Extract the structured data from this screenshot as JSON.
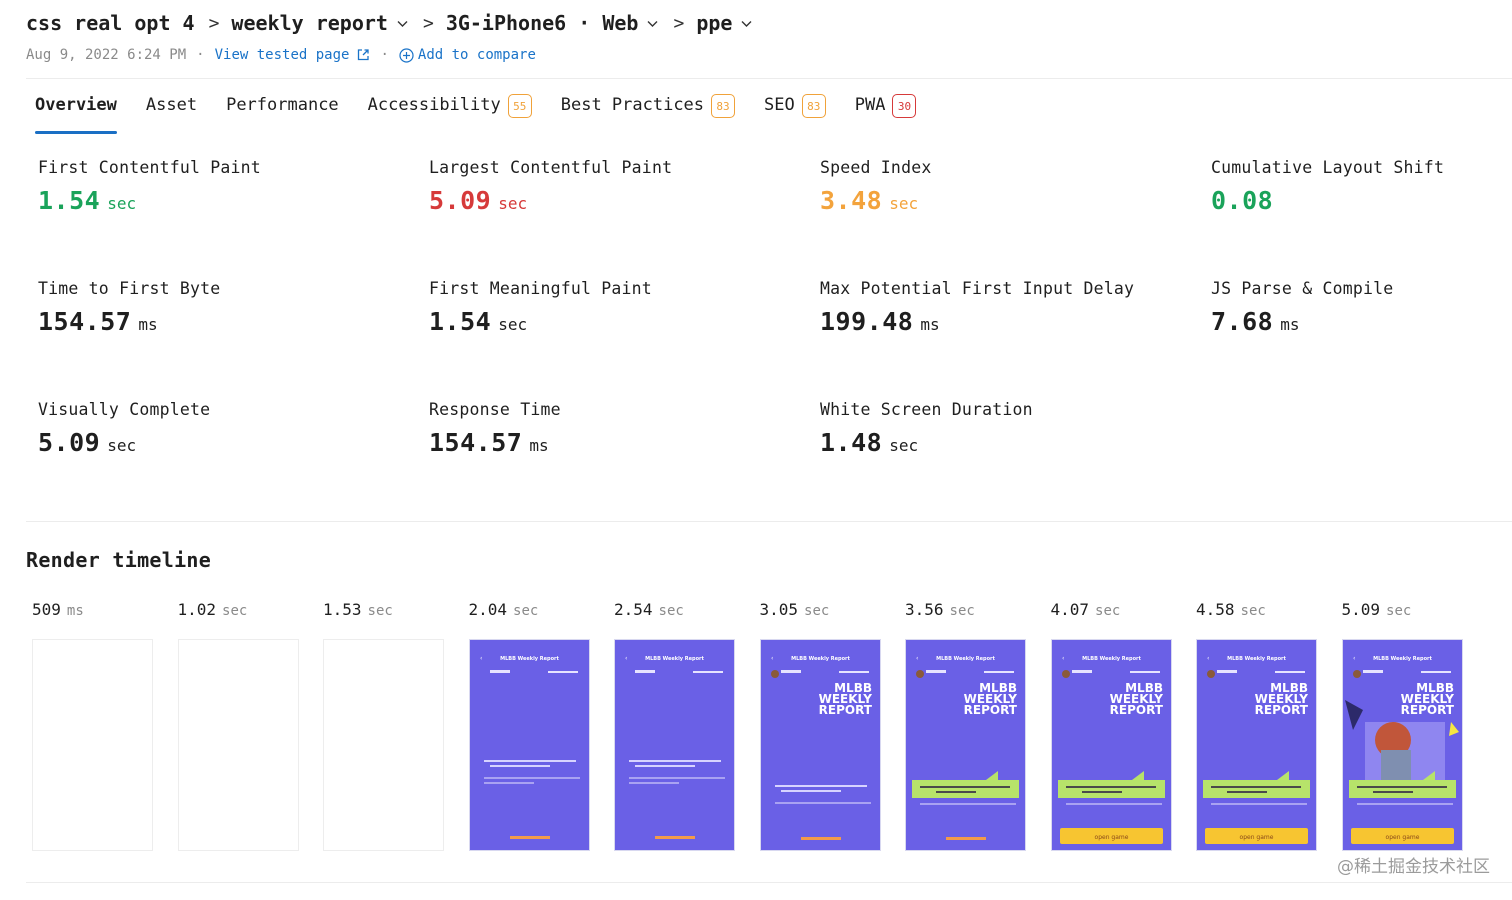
{
  "header": {
    "breadcrumb": [
      {
        "label": "css real opt 4",
        "dropdown": false
      },
      {
        "label": "weekly report",
        "dropdown": true
      },
      {
        "label": "3G-iPhone6 · Web",
        "dropdown": true
      },
      {
        "label": "ppe",
        "dropdown": true
      }
    ],
    "timestamp": "Aug 9, 2022 6:24 PM",
    "separator": "·",
    "view_tested_page": "View tested page",
    "add_to_compare": "Add to compare"
  },
  "tabs": [
    {
      "label": "Overview",
      "badge": null,
      "active": true
    },
    {
      "label": "Asset",
      "badge": null,
      "active": false
    },
    {
      "label": "Performance",
      "badge": null,
      "active": false
    },
    {
      "label": "Accessibility",
      "badge": "55",
      "badge_color": "#f0a23a",
      "active": false
    },
    {
      "label": "Best Practices",
      "badge": "83",
      "badge_color": "#f0a23a",
      "active": false
    },
    {
      "label": "SEO",
      "badge": "83",
      "badge_color": "#f0a23a",
      "active": false
    },
    {
      "label": "PWA",
      "badge": "30",
      "badge_color": "#d63a3a",
      "active": false
    }
  ],
  "metrics": [
    {
      "label": "First Contentful Paint",
      "value": "1.54",
      "unit": "sec",
      "color": "#1aa35a"
    },
    {
      "label": "Largest Contentful Paint",
      "value": "5.09",
      "unit": "sec",
      "color": "#d63a3a"
    },
    {
      "label": "Speed Index",
      "value": "3.48",
      "unit": "sec",
      "color": "#f3a33c"
    },
    {
      "label": "Cumulative Layout Shift",
      "value": "0.08",
      "unit": "",
      "color": "#1aa35a"
    },
    {
      "label": "Time to First Byte",
      "value": "154.57",
      "unit": "ms",
      "color": "#1f1f1f"
    },
    {
      "label": "First Meaningful Paint",
      "value": "1.54",
      "unit": "sec",
      "color": "#1f1f1f"
    },
    {
      "label": "Max Potential First Input Delay",
      "value": "199.48",
      "unit": "ms",
      "color": "#1f1f1f"
    },
    {
      "label": "JS Parse & Compile",
      "value": "7.68",
      "unit": "ms",
      "color": "#1f1f1f"
    },
    {
      "label": "Visually Complete",
      "value": "5.09",
      "unit": "sec",
      "color": "#1f1f1f"
    },
    {
      "label": "Response Time",
      "value": "154.57",
      "unit": "ms",
      "color": "#1f1f1f"
    },
    {
      "label": "White Screen Duration",
      "value": "1.48",
      "unit": "sec",
      "color": "#1f1f1f"
    }
  ],
  "render_timeline": {
    "title": "Render timeline",
    "frames": [
      {
        "time": "509",
        "unit": "ms",
        "state": "blank"
      },
      {
        "time": "1.02",
        "unit": "sec",
        "state": "blank"
      },
      {
        "time": "1.53",
        "unit": "sec",
        "state": "blank"
      },
      {
        "time": "2.04",
        "unit": "sec",
        "state": "loading"
      },
      {
        "time": "2.54",
        "unit": "sec",
        "state": "loading"
      },
      {
        "time": "3.05",
        "unit": "sec",
        "state": "title"
      },
      {
        "time": "3.56",
        "unit": "sec",
        "state": "banner"
      },
      {
        "time": "4.07",
        "unit": "sec",
        "state": "button"
      },
      {
        "time": "4.58",
        "unit": "sec",
        "state": "button"
      },
      {
        "time": "5.09",
        "unit": "sec",
        "state": "complete"
      }
    ],
    "screenshot_title": "MLBB Weekly Report",
    "screenshot_heading": [
      "MLBB",
      "WEEKLY",
      "REPORT"
    ],
    "screenshot_button": "open game"
  },
  "credit": "@稀土掘金技术社区",
  "colors": {
    "accent": "#1a6fc4",
    "link": "#1a73c8",
    "frame_bg": "#6a60e6"
  }
}
